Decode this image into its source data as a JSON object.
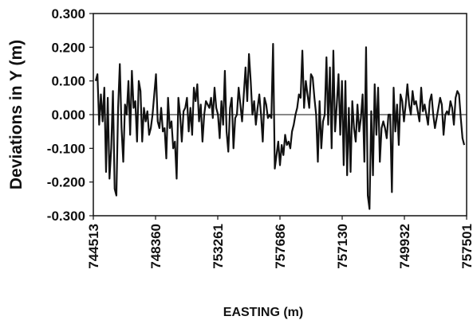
{
  "chart_data": {
    "type": "line",
    "xlabel": "EASTING (m)",
    "ylabel": "Deviations in Y (m)",
    "ylim": [
      -0.3,
      0.3
    ],
    "yticks": [
      "0.300",
      "0.200",
      "0.100",
      "0.000",
      "-0.100",
      "-0.200",
      "-0.300"
    ],
    "xticks": [
      "744513",
      "748360",
      "753261",
      "757686",
      "757130",
      "749932",
      "757501"
    ],
    "zero_line": true,
    "grid": false,
    "series": [
      {
        "color": "#111111",
        "y": [
          0.1,
          0.12,
          -0.03,
          0.06,
          -0.02,
          0.08,
          -0.17,
          0.05,
          -0.19,
          -0.1,
          0.07,
          -0.22,
          -0.24,
          0.02,
          0.15,
          -0.04,
          -0.14,
          0.03,
          0.0,
          0.1,
          -0.06,
          0.13,
          0.02,
          0.04,
          -0.08,
          0.1,
          0.07,
          -0.08,
          0.02,
          -0.02,
          0.01,
          -0.06,
          -0.04,
          0.0,
          0.06,
          0.12,
          -0.02,
          -0.04,
          0.02,
          -0.05,
          -0.04,
          -0.13,
          0.05,
          -0.04,
          -0.02,
          -0.1,
          -0.08,
          -0.19,
          0.05,
          0.0,
          -0.08,
          0.01,
          0.02,
          0.05,
          -0.05,
          0.02,
          -0.06,
          0.08,
          0.04,
          0.09,
          -0.02,
          0.03,
          -0.08,
          0.0,
          0.04,
          0.03,
          0.02,
          0.05,
          -0.01,
          0.08,
          0.02,
          0.0,
          -0.07,
          0.04,
          -0.03,
          0.13,
          -0.05,
          -0.11,
          0.02,
          0.05,
          -0.1,
          -0.01,
          0.0,
          0.08,
          0.03,
          -0.02,
          0.06,
          0.14,
          0.04,
          0.18,
          0.1,
          0.0,
          0.04,
          -0.03,
          0.02,
          0.06,
          0.0,
          -0.08,
          0.05,
          0.03,
          -0.01,
          0.0,
          -0.01,
          0.21,
          -0.16,
          -0.12,
          -0.08,
          -0.15,
          -0.09,
          -0.12,
          -0.06,
          -0.09,
          -0.08,
          -0.1,
          -0.05,
          -0.03,
          0.0,
          0.02,
          0.06,
          0.05,
          0.19,
          0.02,
          0.1,
          0.06,
          0.02,
          0.12,
          0.11,
          0.05,
          0.0,
          -0.14,
          0.04,
          -0.1,
          -0.02,
          0.0,
          0.17,
          -0.03,
          0.14,
          -0.1,
          0.19,
          -0.05,
          0.03,
          0.12,
          -0.06,
          0.1,
          -0.15,
          0.1,
          -0.18,
          0.02,
          -0.17,
          0.04,
          -0.04,
          -0.08,
          0.03,
          -0.05,
          -0.01,
          0.06,
          -0.14,
          0.2,
          -0.24,
          -0.28,
          0.01,
          -0.18,
          0.09,
          -0.06,
          0.08,
          -0.14,
          -0.04,
          -0.02,
          -0.04,
          -0.07,
          0.0,
          0.0,
          -0.23,
          0.08,
          -0.05,
          0.03,
          -0.09,
          0.06,
          0.04,
          -0.02,
          0.03,
          0.09,
          0.03,
          0.0,
          0.07,
          0.03,
          0.04,
          0.01,
          -0.02,
          0.08,
          0.01,
          0.03,
          0.0,
          -0.03,
          0.04,
          0.06,
          0.0,
          -0.04,
          -0.01,
          0.02,
          0.05,
          0.03,
          -0.06,
          0.0,
          0.01,
          0.0,
          0.04,
          0.02,
          -0.03,
          0.05,
          0.07,
          0.06,
          -0.01,
          -0.07,
          -0.09
        ]
      }
    ]
  }
}
